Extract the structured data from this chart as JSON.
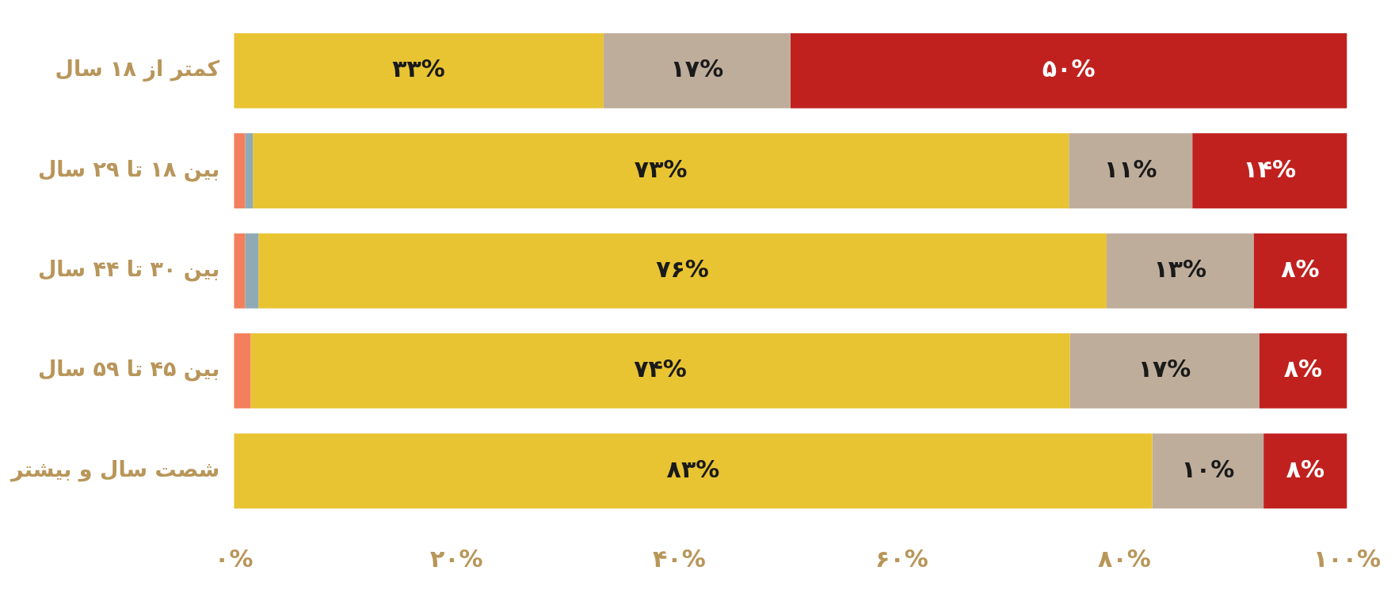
{
  "chart_data": {
    "type": "bar",
    "orientation": "horizontal",
    "stacked": true,
    "categories": [
      "کمتر از ۱۸ سال",
      "بین ۱۸ تا ۲۹ سال",
      "بین ۳۰ تا ۴۴ سال",
      "بین ۴۵ تا ۵۹ سال",
      "شصت سال و بیشتر"
    ],
    "series": [
      {
        "color": "#f47f5c",
        "values": [
          0,
          1,
          1,
          1.5,
          0
        ]
      },
      {
        "color": "#8faab4",
        "values": [
          0,
          0.7,
          1.2,
          0,
          0
        ]
      },
      {
        "color": "#e8c433",
        "values": [
          33.2,
          73.3,
          76.2,
          73.6,
          82.5
        ],
        "value_labels": [
          "۳۳%",
          "۷۳%",
          "۷۶%",
          "۷۴%",
          "۸۳%"
        ]
      },
      {
        "color": "#bfad9b",
        "values": [
          16.8,
          11.1,
          13.2,
          17,
          10
        ],
        "value_labels": [
          "۱۷%",
          "۱۱%",
          "۱۳%",
          "۱۷%",
          "۱۰%"
        ]
      },
      {
        "color": "#c0211f",
        "values": [
          50,
          13.9,
          8.4,
          7.9,
          7.5
        ],
        "value_labels": [
          "۵۰%",
          "۱۴%",
          "۸%",
          "۸%",
          "۸%"
        ]
      }
    ],
    "xlim": [
      0,
      100
    ],
    "xticks": [
      {
        "value": 0,
        "label": "۰%"
      },
      {
        "value": 20,
        "label": "۲۰%"
      },
      {
        "value": 40,
        "label": "۴۰%"
      },
      {
        "value": 60,
        "label": "۶۰%"
      },
      {
        "value": 80,
        "label": "۸۰%"
      },
      {
        "value": 100,
        "label": "۱۰۰%"
      }
    ],
    "grid": false,
    "legend": false
  }
}
